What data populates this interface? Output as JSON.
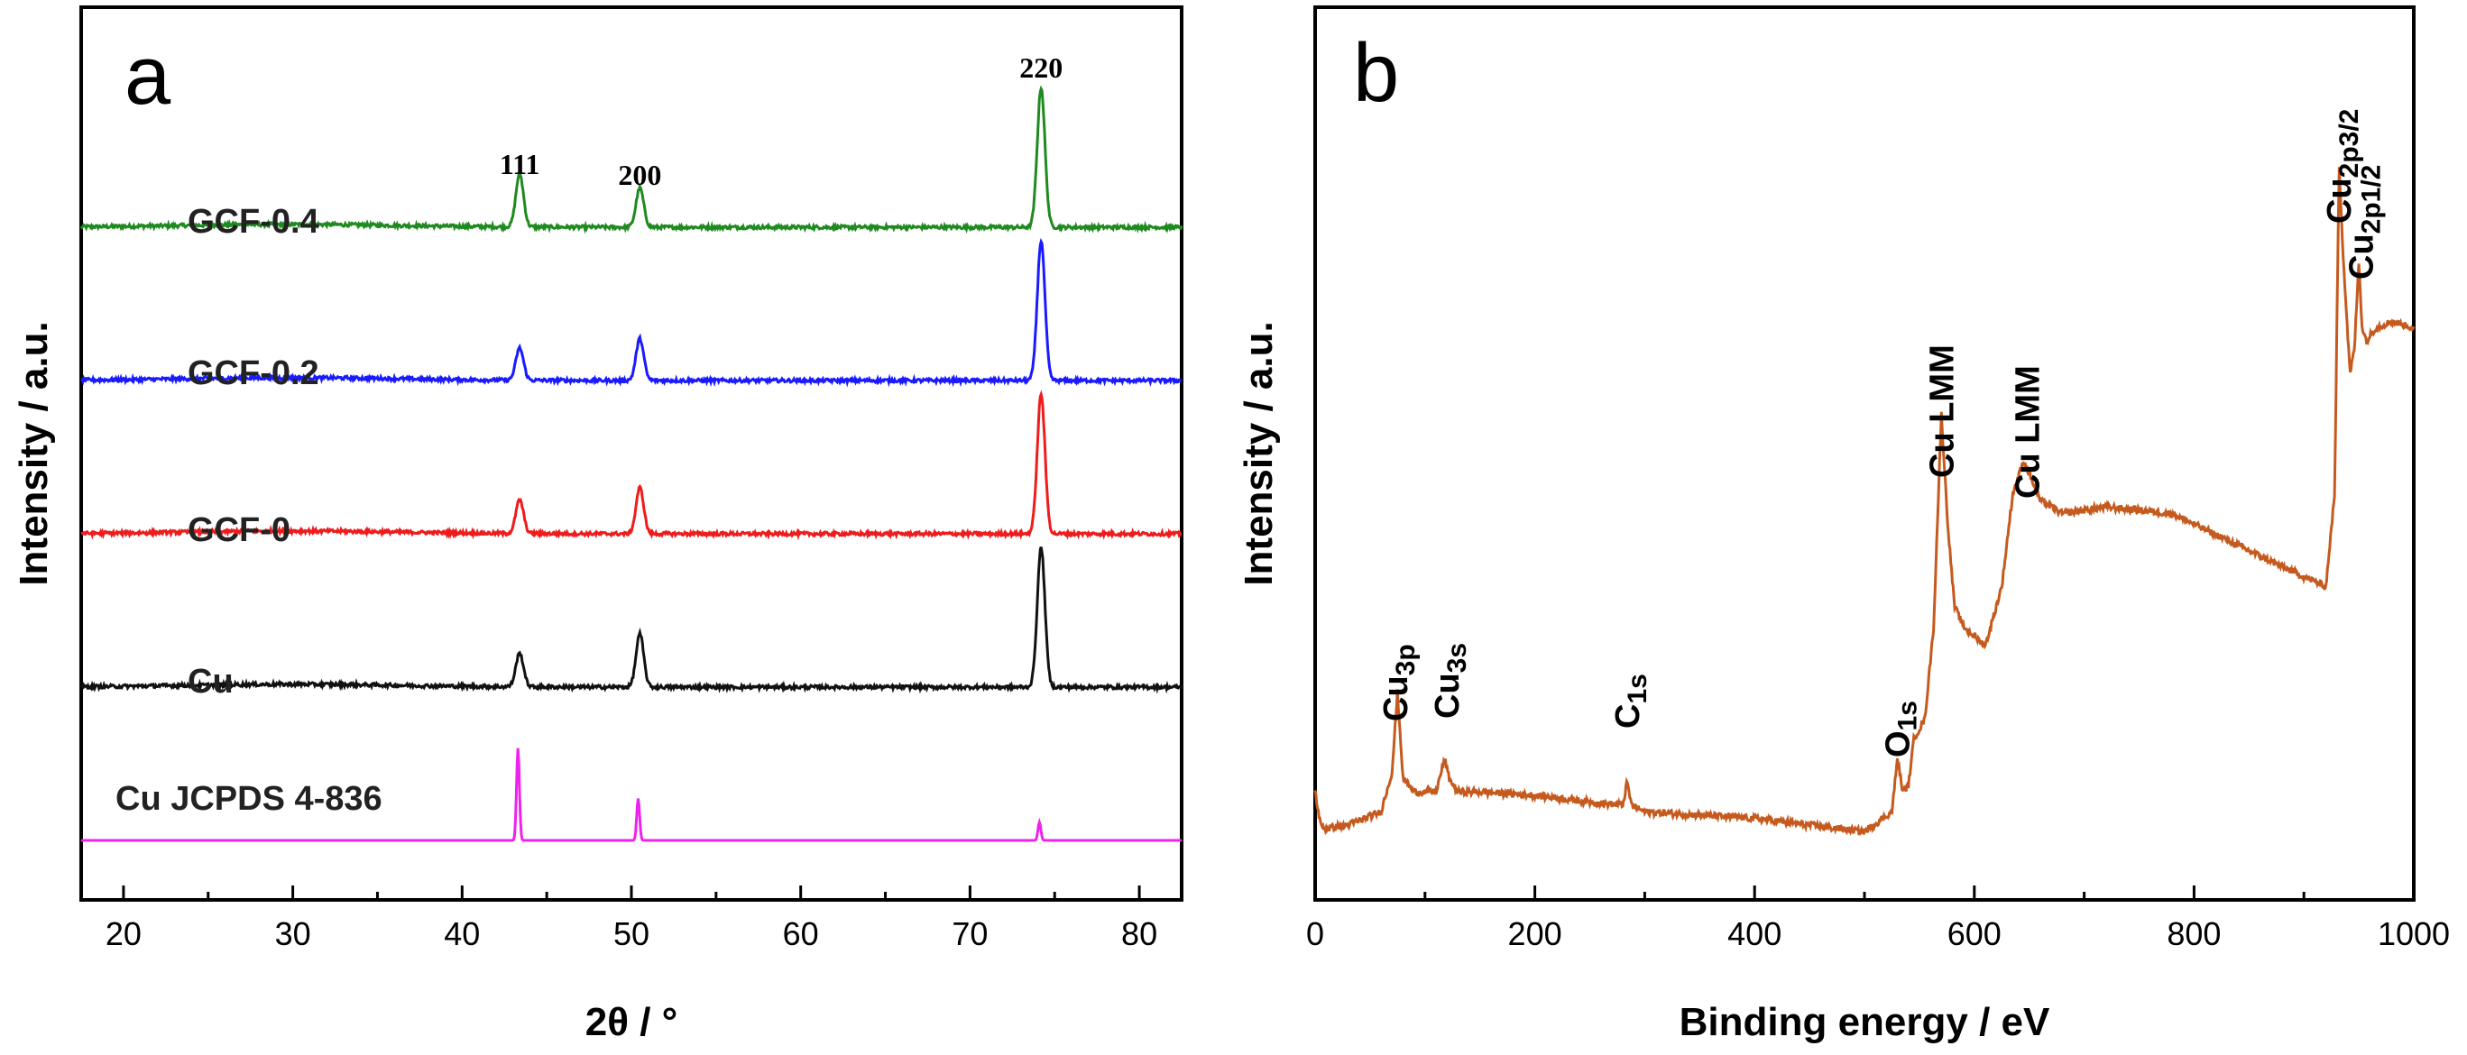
{
  "chart_data": [
    {
      "panel_label": "a",
      "type": "line",
      "title": "",
      "xlabel": "2θ / °",
      "ylabel": "Intensity / a.u.",
      "xlim": [
        17.5,
        82.5
      ],
      "x_ticks": [
        20,
        30,
        40,
        50,
        60,
        70,
        80
      ],
      "y_ticks": [],
      "grid": false,
      "peak_labels": [
        {
          "text": "111",
          "x": 43.4
        },
        {
          "text": "200",
          "x": 50.5
        },
        {
          "text": "220",
          "x": 74.2
        }
      ],
      "series": [
        {
          "name": "GCF-0.4",
          "color": "#1f8a1f",
          "offset": 4,
          "baseline": 0.04,
          "peaks": [
            {
              "x": 43.4,
              "h": 0.38
            },
            {
              "x": 50.5,
              "h": 0.28
            },
            {
              "x": 74.2,
              "h": 1.0
            }
          ]
        },
        {
          "name": "GCF-0.2",
          "color": "#1a1aff",
          "offset": 3,
          "baseline": 0.04,
          "peaks": [
            {
              "x": 43.4,
              "h": 0.23
            },
            {
              "x": 50.5,
              "h": 0.3
            },
            {
              "x": 74.2,
              "h": 1.0
            }
          ]
        },
        {
          "name": "GCF-0",
          "color": "#ee1c1c",
          "offset": 2,
          "baseline": 0.04,
          "peaks": [
            {
              "x": 43.4,
              "h": 0.24
            },
            {
              "x": 50.5,
              "h": 0.33
            },
            {
              "x": 74.2,
              "h": 1.0
            }
          ]
        },
        {
          "name": "Cu",
          "color": "#111111",
          "offset": 1,
          "baseline": 0.04,
          "peaks": [
            {
              "x": 43.4,
              "h": 0.24
            },
            {
              "x": 50.5,
              "h": 0.38
            },
            {
              "x": 74.2,
              "h": 1.0
            }
          ]
        },
        {
          "name": "Cu JCPDS 4-836",
          "color": "#ee22ee",
          "offset": 0,
          "baseline": 0.0,
          "peaks": [
            {
              "x": 43.3,
              "h": 0.66
            },
            {
              "x": 50.4,
              "h": 0.3
            },
            {
              "x": 74.1,
              "h": 0.13
            }
          ]
        }
      ]
    },
    {
      "panel_label": "b",
      "type": "line",
      "title": "",
      "xlabel": "Binding energy / eV",
      "ylabel": "Intensity / a.u.",
      "xlim": [
        0,
        1000
      ],
      "x_ticks": [
        0,
        200,
        400,
        600,
        800,
        1000
      ],
      "y_ticks": [],
      "grid": false,
      "color": "#c55a1e",
      "x": [
        0,
        5,
        10,
        30,
        60,
        70,
        75,
        80,
        90,
        110,
        118,
        122,
        130,
        150,
        200,
        250,
        280,
        284,
        288,
        300,
        400,
        500,
        525,
        530,
        535,
        540,
        545,
        555,
        563,
        570,
        576,
        582,
        590,
        610,
        625,
        635,
        645,
        650,
        660,
        680,
        720,
        780,
        830,
        880,
        920,
        928,
        932,
        936,
        942,
        946,
        950,
        953,
        957,
        965,
        980,
        1000
      ],
      "y": [
        0.05,
        0.0,
        -0.005,
        0.0,
        0.02,
        0.08,
        0.2,
        0.07,
        0.05,
        0.05,
        0.1,
        0.07,
        0.05,
        0.05,
        0.045,
        0.035,
        0.03,
        0.065,
        0.03,
        0.02,
        0.01,
        -0.01,
        0.02,
        0.1,
        0.05,
        0.06,
        0.13,
        0.16,
        0.3,
        0.62,
        0.45,
        0.33,
        0.3,
        0.27,
        0.36,
        0.5,
        0.55,
        0.53,
        0.49,
        0.47,
        0.48,
        0.47,
        0.43,
        0.39,
        0.36,
        0.5,
        1.0,
        0.85,
        0.68,
        0.72,
        0.85,
        0.75,
        0.73,
        0.75,
        0.76,
        0.75
      ],
      "peak_labels": [
        {
          "text": "Cu",
          "sub": "3p",
          "x": 73
        },
        {
          "text": "Cu",
          "sub": "3s",
          "x": 120
        },
        {
          "text": "C",
          "sub": "1s",
          "x": 284
        },
        {
          "text": "O",
          "sub": "1s",
          "x": 530
        },
        {
          "text": "Cu LMM",
          "sub": "",
          "x": 570
        },
        {
          "text": "Cu LMM",
          "sub": "",
          "x": 648
        },
        {
          "text": "Cu",
          "sub": "2p3/2",
          "x": 932
        },
        {
          "text": "Cu",
          "sub": "2p1/2",
          "x": 952
        }
      ]
    }
  ]
}
